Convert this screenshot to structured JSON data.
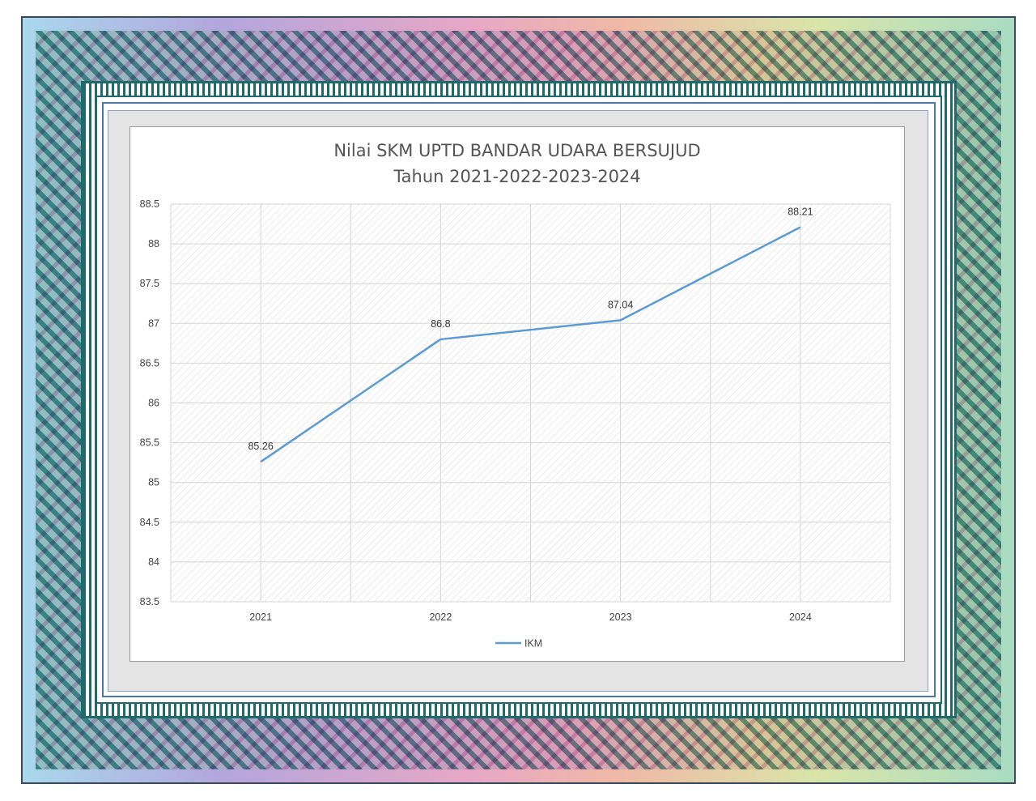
{
  "chart_data": {
    "type": "line",
    "title": "Nilai SKM UPTD BANDAR UDARA BERSUJUD",
    "subtitle": "Tahun 2021-2022-2023-2024",
    "categories": [
      "2021",
      "2022",
      "2023",
      "2024"
    ],
    "series": [
      {
        "name": "IKM",
        "values": [
          85.26,
          86.8,
          87.04,
          88.21
        ],
        "color": "#5b9bd5"
      }
    ],
    "ylim": [
      83.5,
      88.5
    ],
    "yticks": [
      83.5,
      84,
      84.5,
      85,
      85.5,
      86,
      86.5,
      87,
      87.5,
      88,
      88.5
    ],
    "data_labels": true,
    "grid": true,
    "legend": "bottom"
  }
}
